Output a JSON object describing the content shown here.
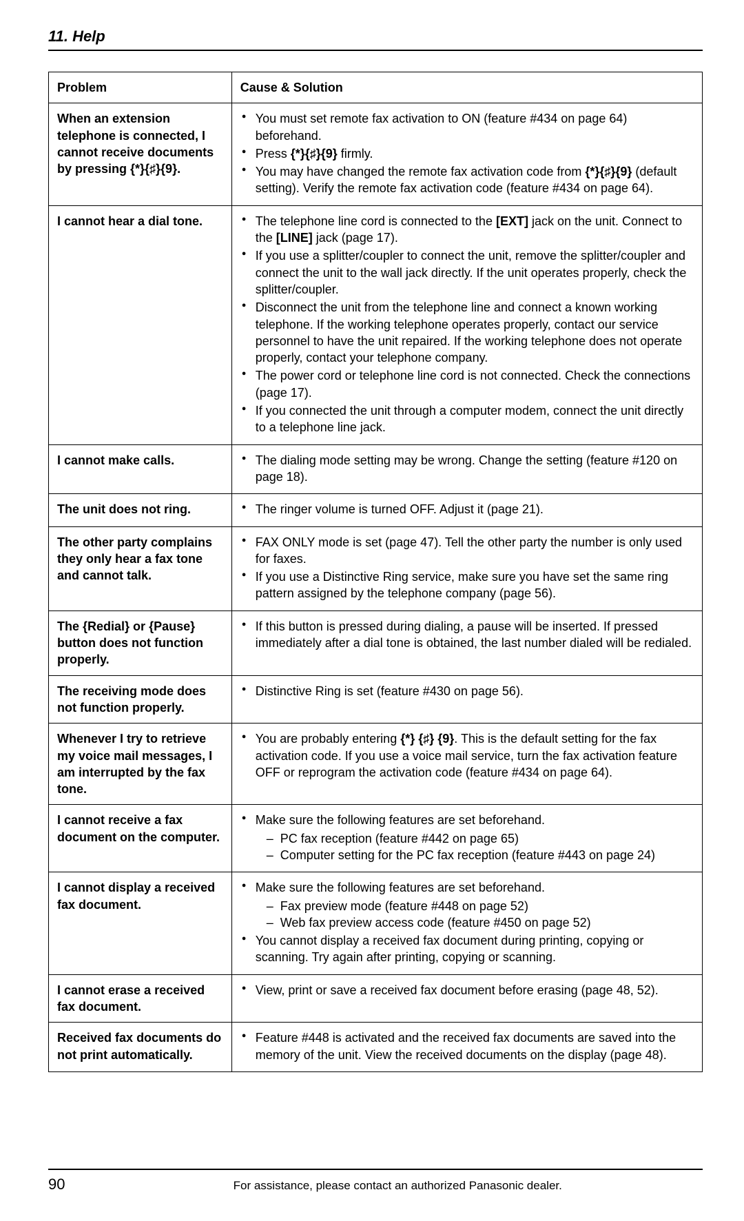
{
  "header": {
    "title": "11. Help"
  },
  "table": {
    "headers": {
      "problem": "Problem",
      "solution": "Cause & Solution"
    },
    "rows": [
      {
        "problem_html": "When an extension telephone is connected, I cannot receive documents by pressing <span class='key'>{*}{♯}{9}</span>.",
        "solution_html": "<ul class='sol'><li>You must set remote fax activation to ON (feature #434 on page 64) beforehand.</li><li>Press <span class='key'>{*}{♯}{9}</span> firmly.</li><li>You may have changed the remote fax activation code from <span class='key'>{*}{♯}{9}</span> (default setting). Verify the remote fax activation code (feature #434 on page 64).</li></ul>"
      },
      {
        "problem_html": "I cannot hear a dial tone.",
        "solution_html": "<ul class='sol'><li>The telephone line cord is connected to the <span class='key'>[EXT]</span> jack on the unit. Connect to the <span class='key'>[LINE]</span> jack (page 17).</li><li>If you use a splitter/coupler to connect the unit, remove the splitter/coupler and connect the unit to the wall jack directly. If the unit operates properly, check the splitter/coupler.</li><li>Disconnect the unit from the telephone line and connect a known working telephone. If the working telephone operates properly, contact our service personnel to have the unit repaired. If the working telephone does not operate properly, contact your telephone company.</li><li>The power cord or telephone line cord is not connected. Check the connections (page 17).</li><li>If you connected the unit through a computer modem, connect the unit directly to a telephone line jack.</li></ul>"
      },
      {
        "problem_html": "I cannot make calls.",
        "solution_html": "<ul class='sol'><li>The dialing mode setting may be wrong. Change the setting (feature #120 on page 18).</li></ul>"
      },
      {
        "problem_html": "The unit does not ring.",
        "solution_html": "<ul class='sol'><li>The ringer volume is turned OFF. Adjust it (page 21).</li></ul>"
      },
      {
        "problem_html": "The other party complains they only hear a fax tone and cannot talk.",
        "solution_html": "<ul class='sol'><li>FAX ONLY mode is set (page 47). Tell the other party the number is only used for faxes.</li><li>If you use a Distinctive Ring service, make sure you have set the same ring pattern assigned by the telephone company (page 56).</li></ul>"
      },
      {
        "problem_html": "The <span class='key'>{Redial}</span> or <span class='key'>{Pause}</span> button does not function properly.",
        "solution_html": "<ul class='sol'><li>If this button is pressed during dialing, a pause will be inserted. If pressed immediately after a dial tone is obtained, the last number dialed will be redialed.</li></ul>"
      },
      {
        "problem_html": "The receiving mode does not function properly.",
        "solution_html": "<ul class='sol'><li>Distinctive Ring is set (feature #430 on page 56).</li></ul>"
      },
      {
        "problem_html": "Whenever I try to retrieve my voice mail messages, I am interrupted by the fax tone.",
        "solution_html": "<ul class='sol'><li>You are probably entering <span class='key'>{*} {♯} {9}</span>. This is the default setting for the fax activation code. If you use a voice mail service, turn the fax activation feature OFF or reprogram the activation code (feature #434 on page 64).</li></ul>"
      },
      {
        "problem_html": "I cannot receive a fax document on the computer.",
        "solution_html": "<ul class='sol'><li>Make sure the following features are set beforehand.<ul class='sub'><li>PC fax reception (feature #442 on page 65)</li><li>Computer setting for the PC fax reception (feature #443 on page 24)</li></ul></li></ul>"
      },
      {
        "problem_html": "I cannot display a received fax document.",
        "solution_html": "<ul class='sol'><li>Make sure the following features are set beforehand.<ul class='sub'><li>Fax preview mode (feature #448 on page 52)</li><li>Web fax preview access code (feature #450 on page 52)</li></ul></li><li>You cannot display a received fax document during printing, copying or scanning. Try again after printing, copying or scanning.</li></ul>"
      },
      {
        "problem_html": "I cannot erase a received fax document.",
        "solution_html": "<ul class='sol'><li>View, print or save a received fax document before erasing (page 48, 52).</li></ul>"
      },
      {
        "problem_html": "Received fax documents do not print automatically.",
        "solution_html": "<ul class='sol'><li>Feature #448 is activated and the received fax documents are saved into the memory of the unit. View the received documents on the display (page 48).</li></ul>"
      }
    ]
  },
  "footer": {
    "page_number": "90",
    "text": "For assistance, please contact an authorized Panasonic dealer."
  }
}
